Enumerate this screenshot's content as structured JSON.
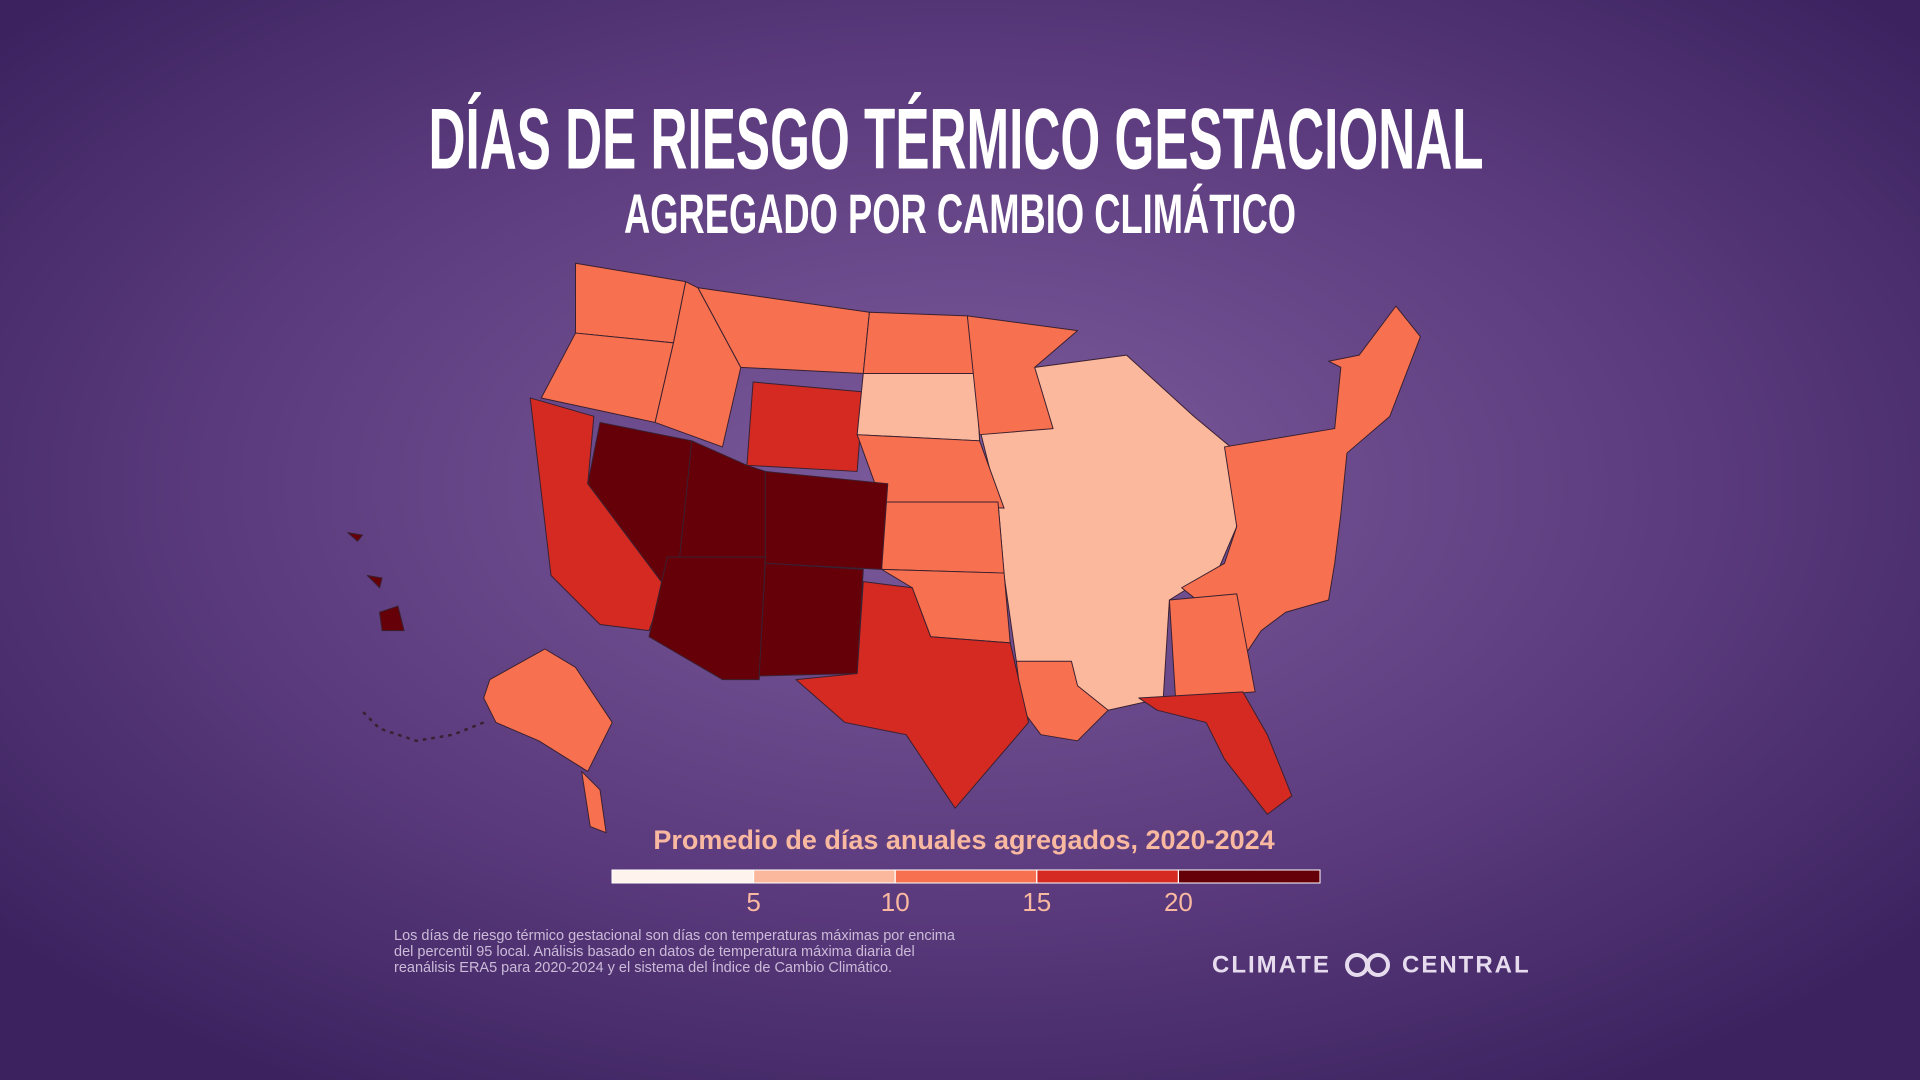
{
  "header": {
    "title": "DÍAS DE RIESGO TÉRMICO GESTACIONAL",
    "subtitle": "AGREGADO POR CAMBIO CLIMÁTICO"
  },
  "legend": {
    "title": "Promedio de días anuales agregados, 2020-2024",
    "colors": [
      "#fff3ee",
      "#fcb89c",
      "#f7704f",
      "#d42a22",
      "#650009"
    ],
    "lim": [
      0,
      25
    ],
    "ticks": [
      5,
      10,
      15,
      20
    ]
  },
  "footnote": [
    "Los días de riesgo térmico gestacional son días con temperaturas máximas por encima",
    "del percentil 95 local. Análisis basado en datos de temperatura máxima diaria del",
    "reanálisis ERA5 para 2020-2024 y el sistema del Índice de Cambio Climático."
  ],
  "brand": {
    "left": "CLIMATE",
    "right": "CENTRAL"
  }
}
